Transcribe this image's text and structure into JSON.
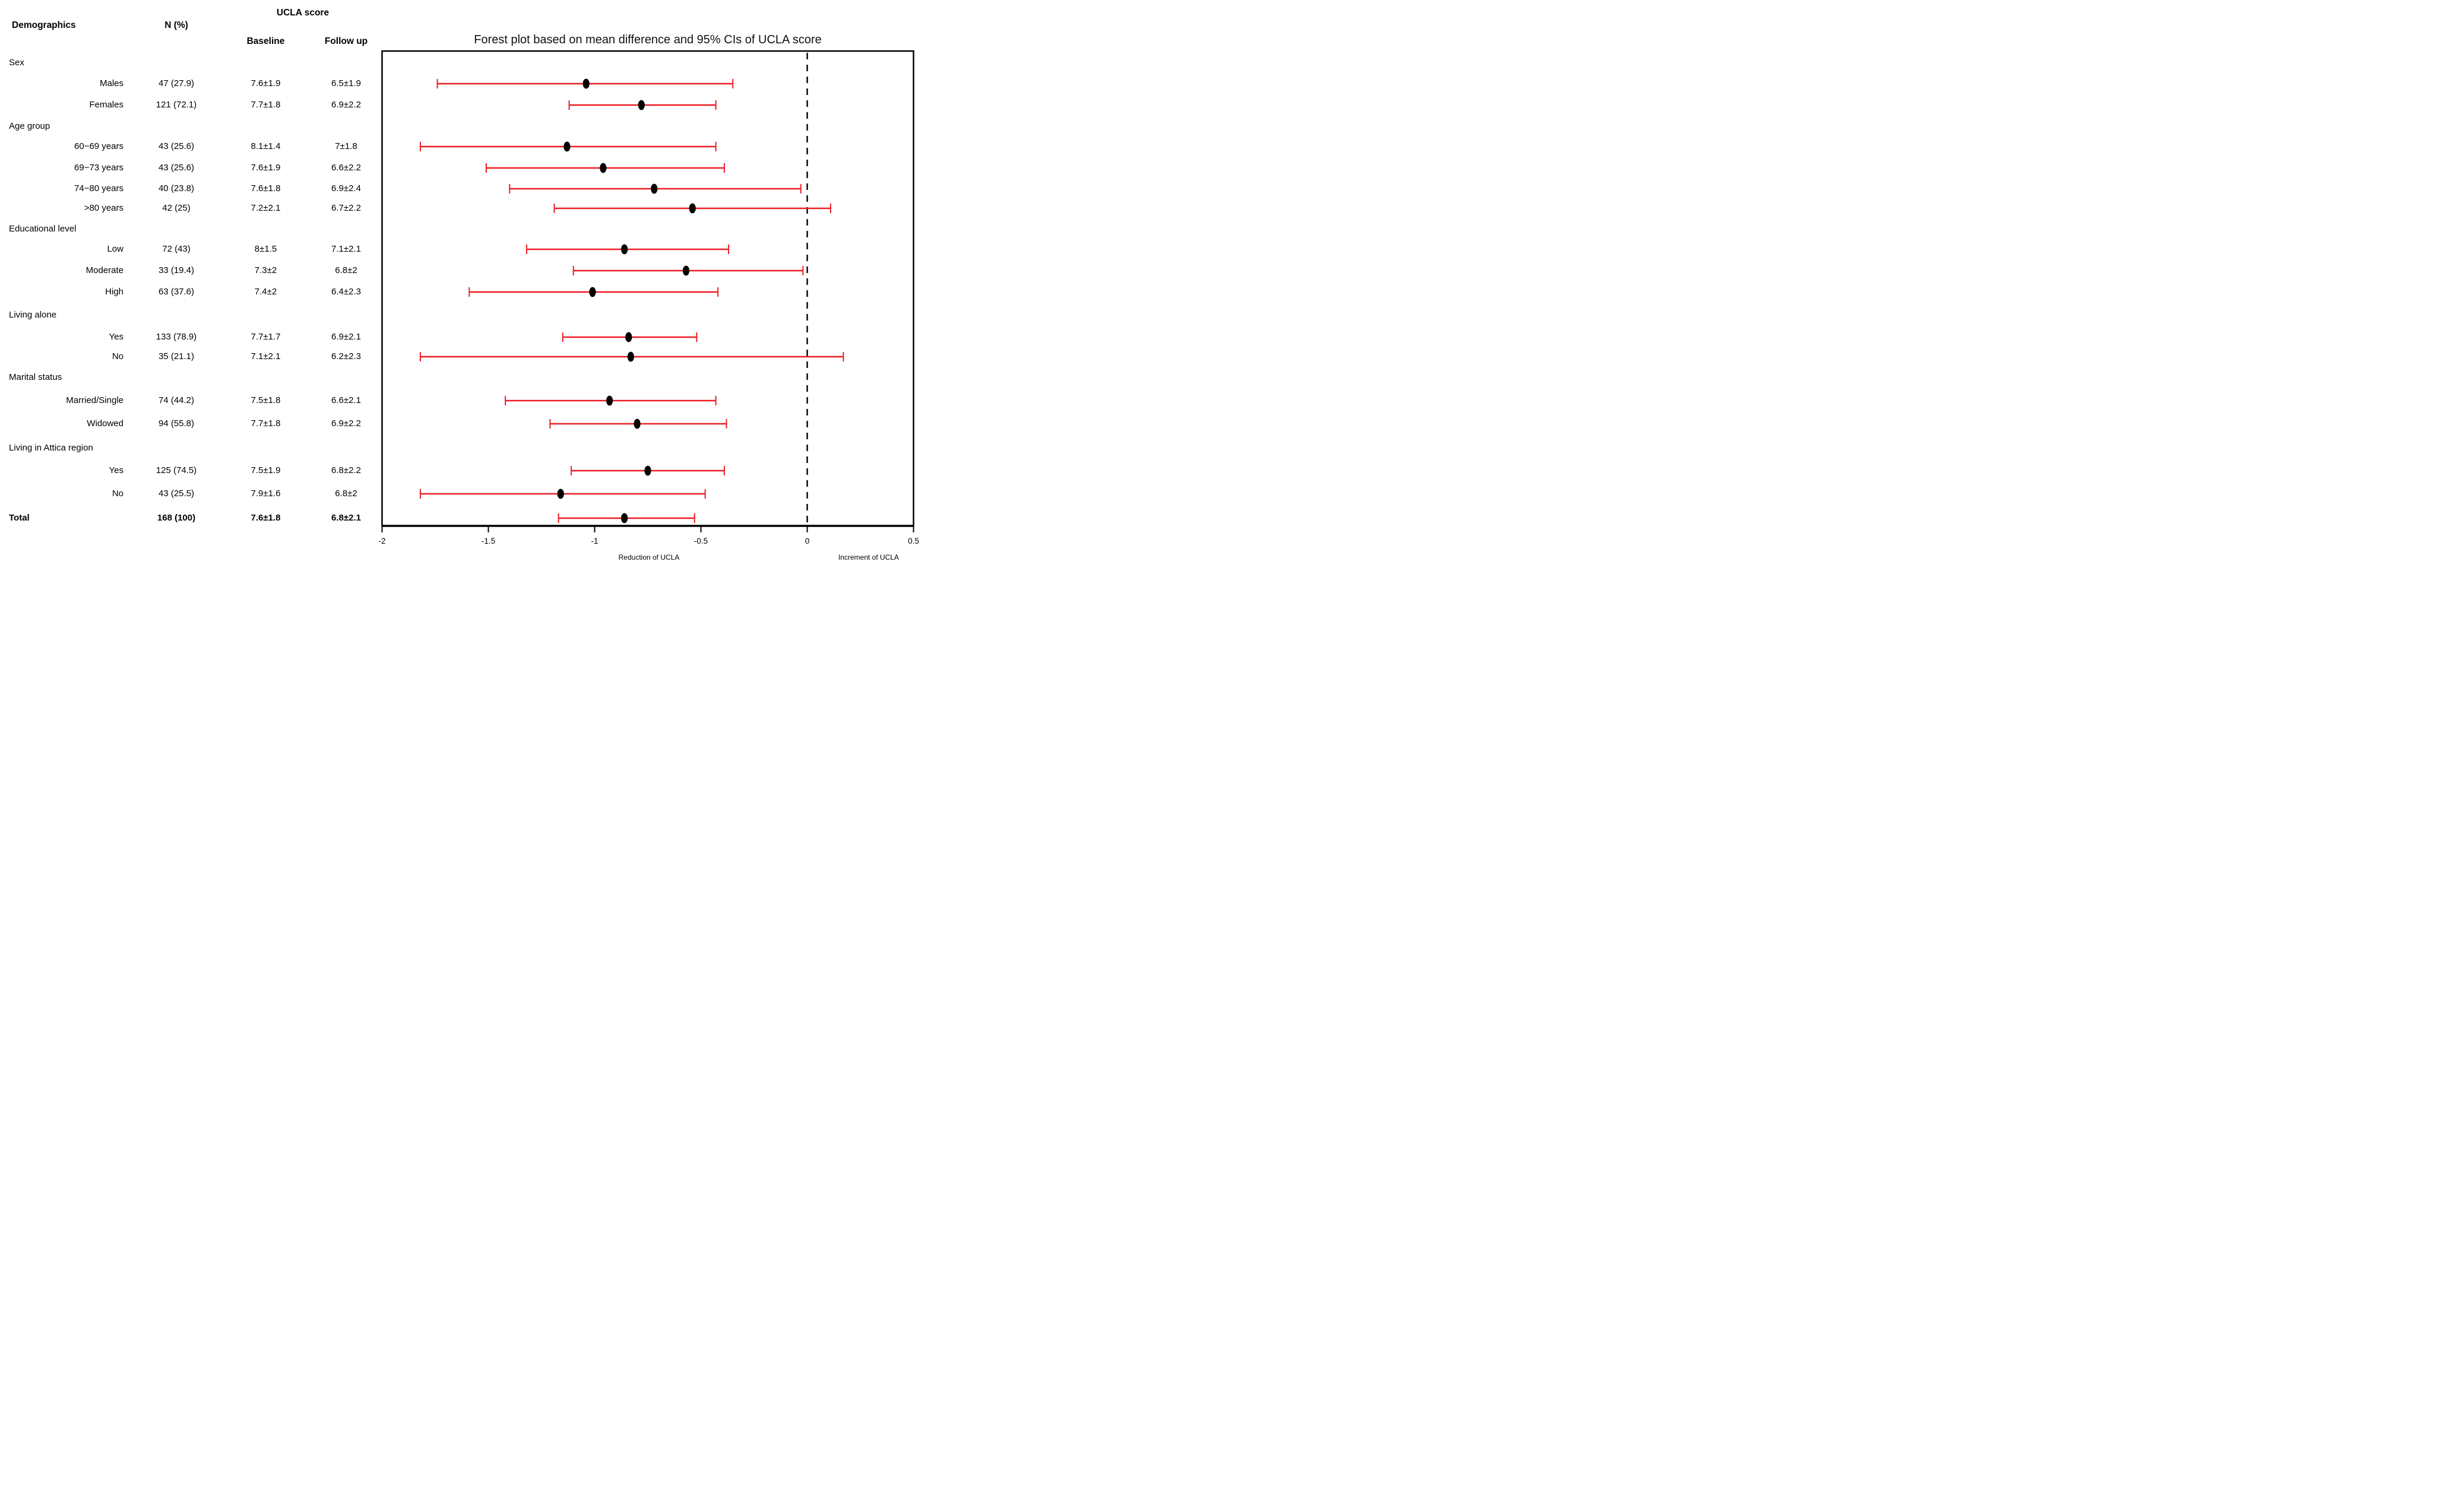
{
  "header": {
    "demographics": "Demographics",
    "n_pct": "N (%)",
    "ucla_score": "UCLA score",
    "baseline": "Baseline",
    "follow_up": "Follow up"
  },
  "table": {
    "rows": [
      {
        "type": "group",
        "label": "Sex",
        "n": "",
        "baseline": "",
        "followup": ""
      },
      {
        "type": "item",
        "label": "Males",
        "n": "47 (27.9)",
        "baseline": "7.6±1.9",
        "followup": "6.5±1.9"
      },
      {
        "type": "item",
        "label": "Females",
        "n": "121 (72.1)",
        "baseline": "7.7±1.8",
        "followup": "6.9±2.2"
      },
      {
        "type": "group",
        "label": "Age group",
        "n": "",
        "baseline": "",
        "followup": ""
      },
      {
        "type": "item",
        "label": "60−69 years",
        "n": "43 (25.6)",
        "baseline": "8.1±1.4",
        "followup": "7±1.8"
      },
      {
        "type": "item",
        "label": "69−73 years",
        "n": "43 (25.6)",
        "baseline": "7.6±1.9",
        "followup": "6.6±2.2"
      },
      {
        "type": "item",
        "label": "74−80 years",
        "n": "40 (23.8)",
        "baseline": "7.6±1.8",
        "followup": "6.9±2.4"
      },
      {
        "type": "item",
        "label": ">80 years",
        "n": "42 (25)",
        "baseline": "7.2±2.1",
        "followup": "6.7±2.2"
      },
      {
        "type": "group",
        "label": "Educational level",
        "n": "",
        "baseline": "",
        "followup": ""
      },
      {
        "type": "item",
        "label": "Low",
        "n": "72 (43)",
        "baseline": "8±1.5",
        "followup": "7.1±2.1"
      },
      {
        "type": "item",
        "label": "Moderate",
        "n": "33 (19.4)",
        "baseline": "7.3±2",
        "followup": "6.8±2"
      },
      {
        "type": "item",
        "label": "High",
        "n": "63 (37.6)",
        "baseline": "7.4±2",
        "followup": "6.4±2.3"
      },
      {
        "type": "group",
        "label": "Living alone",
        "n": "",
        "baseline": "",
        "followup": ""
      },
      {
        "type": "item",
        "label": "Yes",
        "n": "133 (78.9)",
        "baseline": "7.7±1.7",
        "followup": "6.9±2.1"
      },
      {
        "type": "item",
        "label": "No",
        "n": "35 (21.1)",
        "baseline": "7.1±2.1",
        "followup": "6.2±2.3"
      },
      {
        "type": "group",
        "label": "Marital status",
        "n": "",
        "baseline": "",
        "followup": ""
      },
      {
        "type": "item",
        "label": "Married/Single",
        "n": "74 (44.2)",
        "baseline": "7.5±1.8",
        "followup": "6.6±2.1"
      },
      {
        "type": "item",
        "label": "Widowed",
        "n": "94 (55.8)",
        "baseline": "7.7±1.8",
        "followup": "6.9±2.2"
      },
      {
        "type": "group",
        "label": "Living in Attica region",
        "n": "",
        "baseline": "",
        "followup": ""
      },
      {
        "type": "item",
        "label": "Yes",
        "n": "125 (74.5)",
        "baseline": "7.5±1.9",
        "followup": "6.8±2.2"
      },
      {
        "type": "item",
        "label": "No",
        "n": "43 (25.5)",
        "baseline": "7.9±1.6",
        "followup": "6.8±2"
      },
      {
        "type": "total",
        "label": "Total",
        "n": "168 (100)",
        "baseline": "7.6±1.8",
        "followup": "6.8±2.1"
      }
    ]
  },
  "chart_data": {
    "type": "scatter",
    "variant": "forest-plot",
    "title": "Forest plot based on mean difference and 95% CIs of UCLA score",
    "xlabel_left": "Reduction of UCLA",
    "xlabel_right": "Increment of UCLA",
    "xlim": [
      -2,
      0.5
    ],
    "x_ticks": [
      -2,
      -1.5,
      -1,
      -0.5,
      0,
      0.5
    ],
    "x_tick_labels": [
      "-2",
      "-1.5",
      "-1",
      "-0.5",
      "0",
      "0.5"
    ],
    "zero_reference_line": {
      "x": 0,
      "style": "dashed",
      "color": "#000000"
    },
    "grid": false,
    "legend": false,
    "marker_color": "#000000",
    "ci_color": "#ed1c24",
    "rows": [
      {
        "label": "Males",
        "point": -1.04,
        "ci_low": -1.74,
        "ci_high": -0.35
      },
      {
        "label": "Females",
        "point": -0.78,
        "ci_low": -1.12,
        "ci_high": -0.43
      },
      {
        "label": "60−69 years",
        "point": -1.13,
        "ci_low": -1.82,
        "ci_high": -0.43
      },
      {
        "label": "69−73 years",
        "point": -0.96,
        "ci_low": -1.51,
        "ci_high": -0.39
      },
      {
        "label": "74−80 years",
        "point": -0.72,
        "ci_low": -1.4,
        "ci_high": -0.03
      },
      {
        "label": ">80 years",
        "point": -0.54,
        "ci_low": -1.19,
        "ci_high": 0.11
      },
      {
        "label": "Low",
        "point": -0.86,
        "ci_low": -1.32,
        "ci_high": -0.37
      },
      {
        "label": "Moderate",
        "point": -0.57,
        "ci_low": -1.1,
        "ci_high": -0.02
      },
      {
        "label": "High",
        "point": -1.01,
        "ci_low": -1.59,
        "ci_high": -0.42
      },
      {
        "label": "Yes",
        "point": -0.84,
        "ci_low": -1.15,
        "ci_high": -0.52
      },
      {
        "label": "No",
        "point": -0.83,
        "ci_low": -1.82,
        "ci_high": 0.17
      },
      {
        "label": "Married/Single",
        "point": -0.93,
        "ci_low": -1.42,
        "ci_high": -0.43
      },
      {
        "label": "Widowed",
        "point": -0.8,
        "ci_low": -1.21,
        "ci_high": -0.38
      },
      {
        "label": "Yes",
        "point": -0.75,
        "ci_low": -1.11,
        "ci_high": -0.39
      },
      {
        "label": "No",
        "point": -1.16,
        "ci_low": -1.82,
        "ci_high": -0.48
      },
      {
        "label": "Total",
        "point": -0.86,
        "ci_low": -1.17,
        "ci_high": -0.53
      }
    ]
  }
}
